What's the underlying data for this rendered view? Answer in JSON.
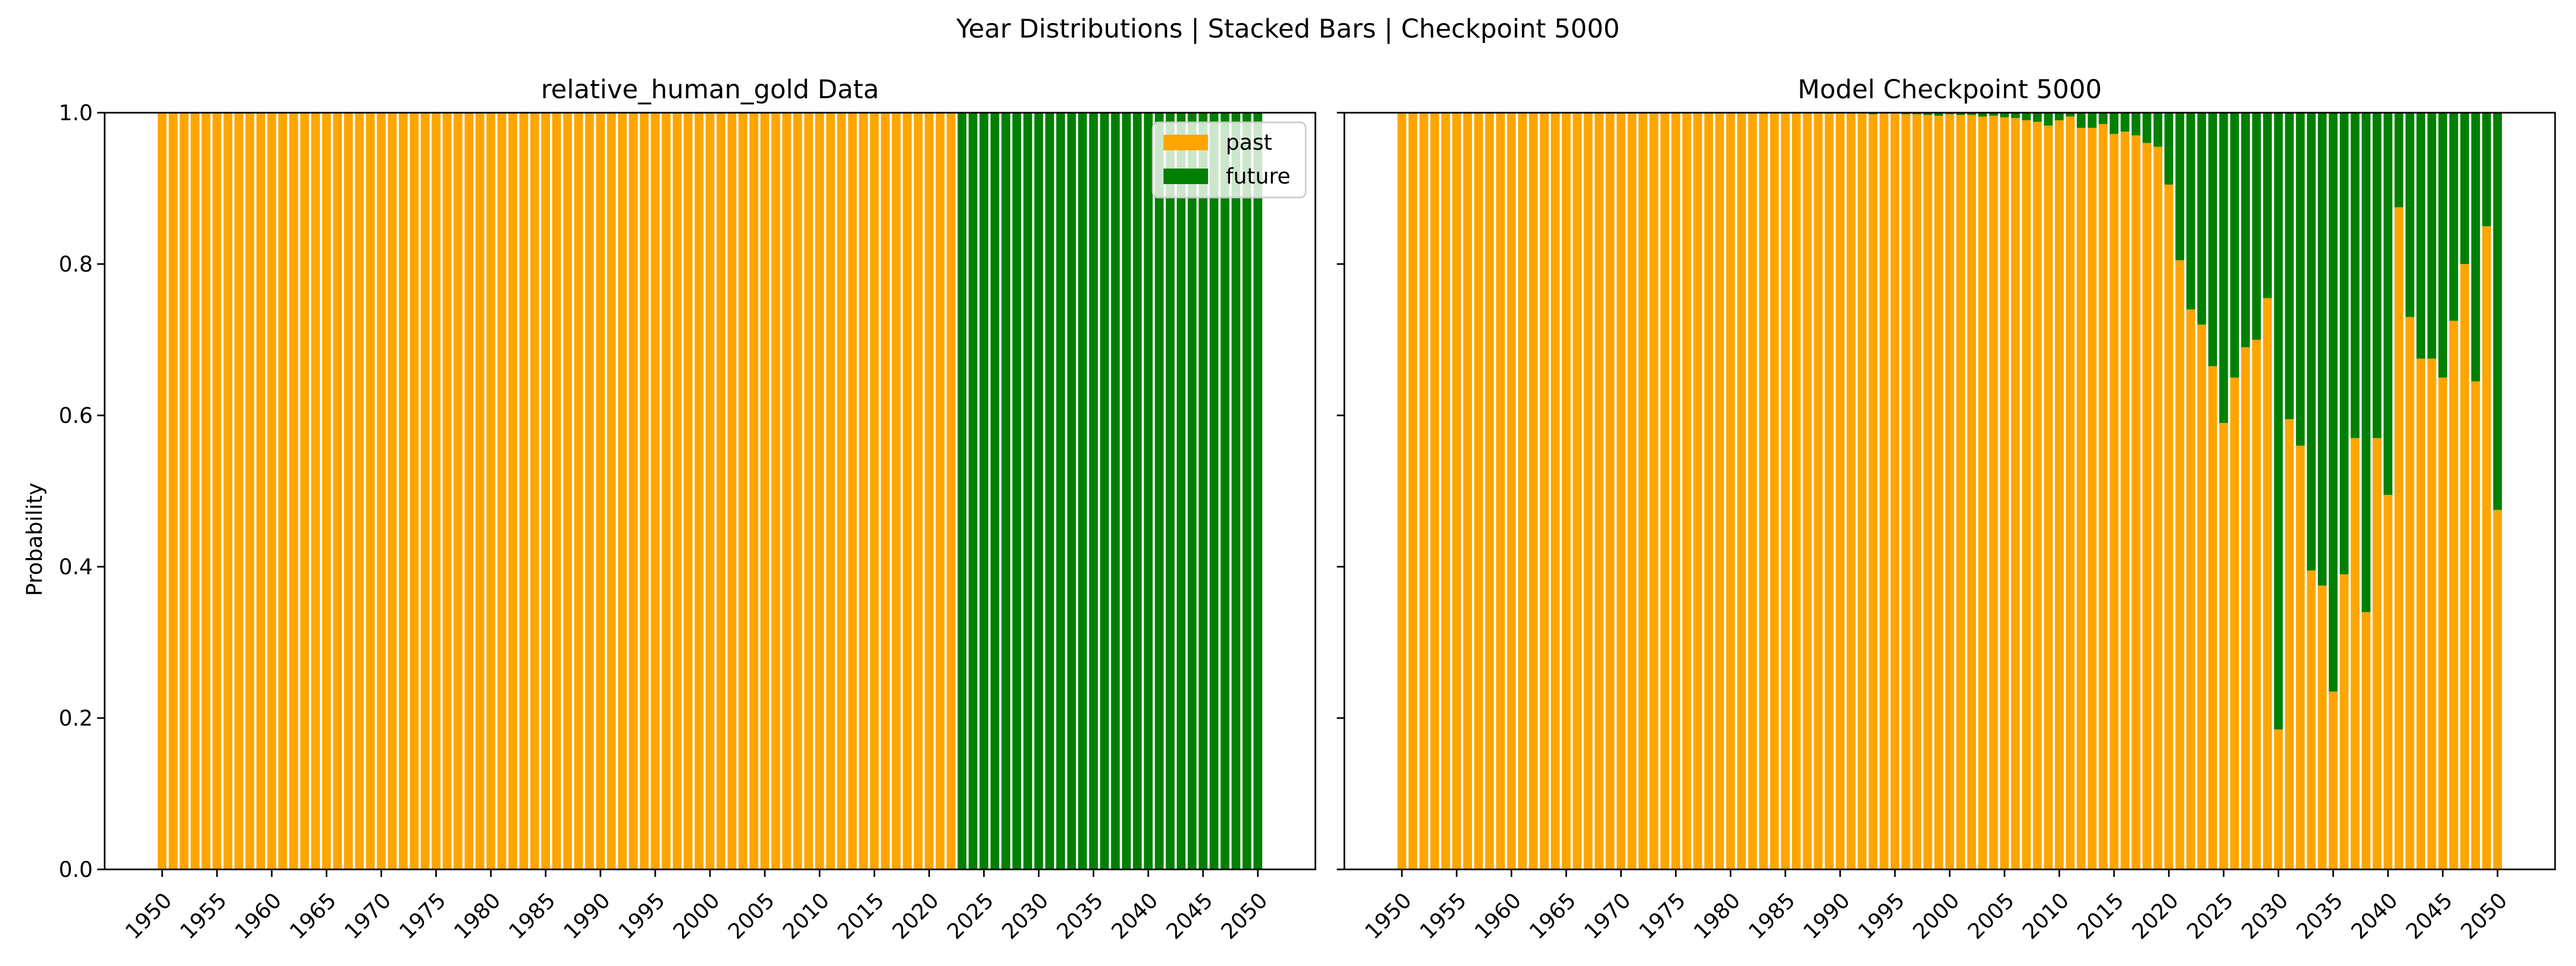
{
  "figure": {
    "title": "Year Distributions | Stacked Bars | Checkpoint 5000"
  },
  "colors": {
    "past": "#ffa500",
    "future": "#008000"
  },
  "legend": {
    "entries": [
      "past",
      "future"
    ],
    "placement": "upper right (left panel)"
  },
  "chart_data": [
    {
      "type": "bar",
      "stacked": true,
      "title": "relative_human_gold Data",
      "xlabel": "",
      "ylabel": "Probability",
      "ylim": [
        0,
        1
      ],
      "yticks": [
        "0.0",
        "0.2",
        "0.4",
        "0.6",
        "0.8",
        "1.0"
      ],
      "xtick_labels": [
        "1950",
        "1955",
        "1960",
        "1965",
        "1970",
        "1975",
        "1980",
        "1985",
        "1990",
        "1995",
        "2000",
        "2005",
        "2010",
        "2015",
        "2020",
        "2025",
        "2030",
        "2035",
        "2040",
        "2045",
        "2050"
      ],
      "x": [
        1950,
        1951,
        1952,
        1953,
        1954,
        1955,
        1956,
        1957,
        1958,
        1959,
        1960,
        1961,
        1962,
        1963,
        1964,
        1965,
        1966,
        1967,
        1968,
        1969,
        1970,
        1971,
        1972,
        1973,
        1974,
        1975,
        1976,
        1977,
        1978,
        1979,
        1980,
        1981,
        1982,
        1983,
        1984,
        1985,
        1986,
        1987,
        1988,
        1989,
        1990,
        1991,
        1992,
        1993,
        1994,
        1995,
        1996,
        1997,
        1998,
        1999,
        2000,
        2001,
        2002,
        2003,
        2004,
        2005,
        2006,
        2007,
        2008,
        2009,
        2010,
        2011,
        2012,
        2013,
        2014,
        2015,
        2016,
        2017,
        2018,
        2019,
        2020,
        2021,
        2022,
        2023,
        2024,
        2025,
        2026,
        2027,
        2028,
        2029,
        2030,
        2031,
        2032,
        2033,
        2034,
        2035,
        2036,
        2037,
        2038,
        2039,
        2040,
        2041,
        2042,
        2043,
        2044,
        2045,
        2046,
        2047,
        2048,
        2049,
        2050
      ],
      "series": [
        {
          "name": "past",
          "values": [
            1,
            1,
            1,
            1,
            1,
            1,
            1,
            1,
            1,
            1,
            1,
            1,
            1,
            1,
            1,
            1,
            1,
            1,
            1,
            1,
            1,
            1,
            1,
            1,
            1,
            1,
            1,
            1,
            1,
            1,
            1,
            1,
            1,
            1,
            1,
            1,
            1,
            1,
            1,
            1,
            1,
            1,
            1,
            1,
            1,
            1,
            1,
            1,
            1,
            1,
            1,
            1,
            1,
            1,
            1,
            1,
            1,
            1,
            1,
            1,
            1,
            1,
            1,
            1,
            1,
            1,
            1,
            1,
            1,
            1,
            1,
            1,
            1,
            0,
            0,
            0,
            0,
            0,
            0,
            0,
            0,
            0,
            0,
            0,
            0,
            0,
            0,
            0,
            0,
            0,
            0,
            0,
            0,
            0,
            0,
            0,
            0,
            0,
            0,
            0,
            0
          ]
        },
        {
          "name": "future",
          "values": [
            0,
            0,
            0,
            0,
            0,
            0,
            0,
            0,
            0,
            0,
            0,
            0,
            0,
            0,
            0,
            0,
            0,
            0,
            0,
            0,
            0,
            0,
            0,
            0,
            0,
            0,
            0,
            0,
            0,
            0,
            0,
            0,
            0,
            0,
            0,
            0,
            0,
            0,
            0,
            0,
            0,
            0,
            0,
            0,
            0,
            0,
            0,
            0,
            0,
            0,
            0,
            0,
            0,
            0,
            0,
            0,
            0,
            0,
            0,
            0,
            0,
            0,
            0,
            0,
            0,
            0,
            0,
            0,
            0,
            0,
            0,
            0,
            0,
            1,
            1,
            1,
            1,
            1,
            1,
            1,
            1,
            1,
            1,
            1,
            1,
            1,
            1,
            1,
            1,
            1,
            1,
            1,
            1,
            1,
            1,
            1,
            1,
            1,
            1,
            1,
            1
          ]
        }
      ]
    },
    {
      "type": "bar",
      "stacked": true,
      "title": "Model Checkpoint 5000",
      "xlabel": "",
      "ylabel": "",
      "ylim": [
        0,
        1
      ],
      "yticks": [
        "0.0",
        "0.2",
        "0.4",
        "0.6",
        "0.8",
        "1.0"
      ],
      "xtick_labels": [
        "1950",
        "1955",
        "1960",
        "1965",
        "1970",
        "1975",
        "1980",
        "1985",
        "1990",
        "1995",
        "2000",
        "2005",
        "2010",
        "2015",
        "2020",
        "2025",
        "2030",
        "2035",
        "2040",
        "2045",
        "2050"
      ],
      "x": [
        1950,
        1951,
        1952,
        1953,
        1954,
        1955,
        1956,
        1957,
        1958,
        1959,
        1960,
        1961,
        1962,
        1963,
        1964,
        1965,
        1966,
        1967,
        1968,
        1969,
        1970,
        1971,
        1972,
        1973,
        1974,
        1975,
        1976,
        1977,
        1978,
        1979,
        1980,
        1981,
        1982,
        1983,
        1984,
        1985,
        1986,
        1987,
        1988,
        1989,
        1990,
        1991,
        1992,
        1993,
        1994,
        1995,
        1996,
        1997,
        1998,
        1999,
        2000,
        2001,
        2002,
        2003,
        2004,
        2005,
        2006,
        2007,
        2008,
        2009,
        2010,
        2011,
        2012,
        2013,
        2014,
        2015,
        2016,
        2017,
        2018,
        2019,
        2020,
        2021,
        2022,
        2023,
        2024,
        2025,
        2026,
        2027,
        2028,
        2029,
        2030,
        2031,
        2032,
        2033,
        2034,
        2035,
        2036,
        2037,
        2038,
        2039,
        2040,
        2041,
        2042,
        2043,
        2044,
        2045,
        2046,
        2047,
        2048,
        2049,
        2050
      ],
      "series": [
        {
          "name": "past",
          "values": [
            1,
            1,
            1,
            1,
            1,
            1,
            1,
            1,
            1,
            1,
            1,
            1,
            1,
            1,
            1,
            1,
            1,
            1,
            1,
            1,
            1,
            1,
            1,
            1,
            1,
            1,
            1,
            1,
            1,
            1,
            1,
            1,
            1,
            1,
            1,
            1,
            0.999,
            1,
            0.999,
            1,
            1,
            0.999,
            1,
            0.998,
            0.999,
            0.999,
            0.998,
            0.998,
            0.997,
            0.996,
            0.998,
            0.997,
            0.997,
            0.995,
            0.996,
            0.994,
            0.993,
            0.99,
            0.988,
            0.983,
            0.99,
            0.995,
            0.98,
            0.98,
            0.985,
            0.972,
            0.975,
            0.97,
            0.96,
            0.955,
            0.905,
            0.805,
            0.74,
            0.72,
            0.665,
            0.59,
            0.65,
            0.69,
            0.7,
            0.755,
            0.185,
            0.595,
            0.56,
            0.395,
            0.375,
            0.235,
            0.39,
            0.57,
            0.34,
            0.57,
            0.495,
            0.875,
            0.73,
            0.675,
            0.675,
            0.65,
            0.725,
            0.8,
            0.645,
            0.85,
            0.475
          ]
        },
        {
          "name": "future",
          "values": [
            0,
            0,
            0,
            0,
            0,
            0,
            0,
            0,
            0,
            0,
            0,
            0,
            0,
            0,
            0,
            0,
            0,
            0,
            0,
            0,
            0,
            0,
            0,
            0,
            0,
            0,
            0,
            0,
            0,
            0,
            0,
            0,
            0,
            0,
            0,
            0,
            0.001,
            0,
            0.001,
            0,
            0,
            0.001,
            0,
            0.002,
            0.001,
            0.001,
            0.002,
            0.002,
            0.003,
            0.004,
            0.002,
            0.003,
            0.003,
            0.005,
            0.004,
            0.006,
            0.007,
            0.01,
            0.012,
            0.017,
            0.01,
            0.005,
            0.02,
            0.02,
            0.015,
            0.028,
            0.025,
            0.03,
            0.04,
            0.045,
            0.095,
            0.195,
            0.26,
            0.28,
            0.335,
            0.41,
            0.35,
            0.31,
            0.3,
            0.245,
            0.815,
            0.405,
            0.44,
            0.605,
            0.625,
            0.765,
            0.61,
            0.43,
            0.66,
            0.43,
            0.505,
            0.125,
            0.27,
            0.325,
            0.325,
            0.35,
            0.275,
            0.2,
            0.355,
            0.15,
            0.525
          ]
        }
      ]
    }
  ]
}
